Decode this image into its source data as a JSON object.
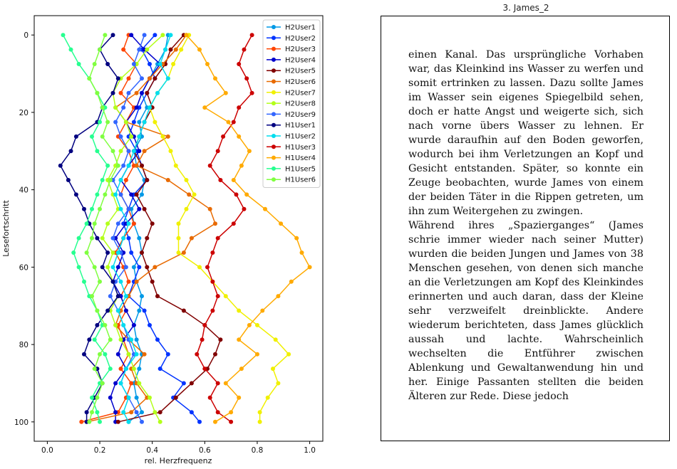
{
  "chart_data": {
    "type": "line",
    "xlabel": "rel. Herzfrequenz",
    "ylabel": "Lesefortschritt",
    "xlim": [
      -0.05,
      1.05
    ],
    "ylim": [
      105,
      -5
    ],
    "xticks": [
      "0.0",
      "0.2",
      "0.4",
      "0.6",
      "0.8",
      "1.0"
    ],
    "yticks": [
      "0",
      "20",
      "40",
      "60",
      "80",
      "100"
    ],
    "xtick_values": [
      0,
      0.2,
      0.4,
      0.6,
      0.8,
      1.0
    ],
    "ytick_values": [
      0,
      20,
      40,
      60,
      80,
      100
    ],
    "grid": false,
    "legend_position": "top-right",
    "y_steps": [
      0,
      3.75,
      7.5,
      11.25,
      15,
      18.75,
      22.5,
      26.25,
      30,
      33.75,
      37.5,
      41.25,
      45,
      48.75,
      52.5,
      56.25,
      60,
      63.75,
      67.5,
      71.25,
      75,
      78.75,
      82.5,
      86.25,
      90,
      93.75,
      97.5,
      100
    ],
    "series": [
      {
        "name": "H2User1",
        "color": "#0099e6",
        "x": [
          0.46,
          0.45,
          0.42,
          0.39,
          0.36,
          0.38,
          0.35,
          0.36,
          0.33,
          0.34,
          0.37,
          0.36,
          0.32,
          0.33,
          0.35,
          0.36,
          0.33,
          0.34,
          0.36,
          0.35,
          0.33,
          0.34,
          0.36,
          0.35,
          0.33,
          0.34,
          0.36,
          0.31
        ]
      },
      {
        "name": "H2User2",
        "color": "#0033ff",
        "x": [
          0.41,
          0.36,
          0.39,
          0.41,
          0.38,
          0.35,
          0.33,
          0.31,
          0.34,
          0.36,
          0.38,
          0.33,
          0.31,
          0.29,
          0.31,
          0.32,
          0.35,
          0.33,
          0.31,
          0.37,
          0.39,
          0.42,
          0.46,
          0.43,
          0.52,
          0.48,
          0.55,
          0.58
        ]
      },
      {
        "name": "H2User3",
        "color": "#ff4400",
        "x": [
          0.31,
          0.29,
          0.34,
          0.31,
          0.28,
          0.33,
          0.3,
          0.27,
          0.31,
          0.33,
          0.3,
          0.28,
          0.31,
          0.33,
          0.29,
          0.26,
          0.29,
          0.31,
          0.28,
          0.3,
          0.27,
          0.29,
          0.31,
          0.28,
          0.32,
          0.3,
          0.27,
          0.13
        ]
      },
      {
        "name": "H2User4",
        "color": "#0000cc",
        "x": [
          0.32,
          0.37,
          0.43,
          0.39,
          0.36,
          0.34,
          0.3,
          0.33,
          0.35,
          0.31,
          0.28,
          0.32,
          0.35,
          0.3,
          0.26,
          0.29,
          0.27,
          0.25,
          0.28,
          0.3,
          0.33,
          0.29,
          0.27,
          0.3,
          0.26,
          0.24,
          0.26,
          0.26
        ]
      },
      {
        "name": "H2User5",
        "color": "#800000",
        "x": [
          0.52,
          0.47,
          0.45,
          0.41,
          0.38,
          0.4,
          0.37,
          0.35,
          0.33,
          0.36,
          0.38,
          0.34,
          0.37,
          0.4,
          0.38,
          0.36,
          0.38,
          0.4,
          0.42,
          0.52,
          0.6,
          0.66,
          0.64,
          0.61,
          0.55,
          0.49,
          0.43,
          0.27
        ]
      },
      {
        "name": "H2User6",
        "color": "#e86a00",
        "x": [
          0.53,
          0.49,
          0.44,
          0.39,
          0.34,
          0.26,
          0.3,
          0.46,
          0.37,
          0.34,
          0.46,
          0.54,
          0.62,
          0.64,
          0.55,
          0.52,
          0.41,
          0.34,
          0.31,
          0.28,
          0.26,
          0.31,
          0.37,
          0.32,
          0.34,
          0.38,
          0.32,
          0.15
        ]
      },
      {
        "name": "H2User7",
        "color": "#f0f000",
        "x": [
          0.54,
          0.51,
          0.48,
          0.46,
          0.42,
          0.39,
          0.41,
          0.44,
          0.47,
          0.49,
          0.53,
          0.56,
          0.53,
          0.5,
          0.5,
          0.5,
          0.58,
          0.63,
          0.68,
          0.73,
          0.8,
          0.87,
          0.92,
          0.86,
          0.88,
          0.84,
          0.81,
          0.81
        ]
      },
      {
        "name": "H2User8",
        "color": "#b3ff1a",
        "x": [
          0.44,
          0.38,
          0.34,
          0.28,
          0.25,
          0.26,
          0.3,
          0.32,
          0.28,
          0.26,
          0.23,
          0.25,
          0.27,
          0.23,
          0.21,
          0.25,
          0.23,
          0.25,
          0.27,
          0.24,
          0.26,
          0.28,
          0.31,
          0.33,
          0.35,
          0.39,
          0.41,
          0.43
        ]
      },
      {
        "name": "H2User9",
        "color": "#3366ff",
        "x": [
          0.37,
          0.35,
          0.33,
          0.36,
          0.31,
          0.29,
          0.26,
          0.28,
          0.31,
          0.29,
          0.25,
          0.28,
          0.31,
          0.27,
          0.25,
          0.28,
          0.3,
          0.26,
          0.24,
          0.27,
          0.29,
          0.31,
          0.33,
          0.3,
          0.28,
          0.31,
          0.34,
          0.36
        ]
      },
      {
        "name": "H1User1",
        "color": "#000080",
        "x": [
          0.25,
          0.2,
          0.23,
          0.27,
          0.25,
          0.21,
          0.19,
          0.11,
          0.09,
          0.05,
          0.08,
          0.11,
          0.14,
          0.16,
          0.19,
          0.23,
          0.21,
          0.25,
          0.27,
          0.23,
          0.19,
          0.16,
          0.14,
          0.19,
          0.21,
          0.18,
          0.15,
          0.15
        ]
      },
      {
        "name": "H1User2",
        "color": "#00ddee",
        "x": [
          0.47,
          0.45,
          0.43,
          0.46,
          0.42,
          0.39,
          0.37,
          0.35,
          0.33,
          0.31,
          0.28,
          0.26,
          0.28,
          0.31,
          0.29,
          0.27,
          0.25,
          0.28,
          0.3,
          0.27,
          0.29,
          0.32,
          0.34,
          0.3,
          0.28,
          0.31,
          0.29,
          0.31
        ]
      },
      {
        "name": "H1User3",
        "color": "#cc0000",
        "x": [
          0.78,
          0.75,
          0.73,
          0.76,
          0.78,
          0.73,
          0.71,
          0.67,
          0.65,
          0.62,
          0.66,
          0.72,
          0.75,
          0.71,
          0.65,
          0.63,
          0.61,
          0.63,
          0.65,
          0.63,
          0.6,
          0.59,
          0.57,
          0.6,
          0.65,
          0.62,
          0.65,
          0.7
        ]
      },
      {
        "name": "H1User4",
        "color": "#ffaa00",
        "x": [
          0.53,
          0.58,
          0.61,
          0.64,
          0.68,
          0.6,
          0.69,
          0.73,
          0.77,
          0.74,
          0.71,
          0.76,
          0.83,
          0.89,
          0.95,
          0.97,
          1.0,
          0.93,
          0.88,
          0.82,
          0.77,
          0.73,
          0.8,
          0.74,
          0.68,
          0.73,
          0.7,
          0.64
        ]
      },
      {
        "name": "H1User5",
        "color": "#26ff90",
        "x": [
          0.06,
          0.09,
          0.12,
          0.16,
          0.19,
          0.22,
          0.2,
          0.17,
          0.19,
          0.23,
          0.21,
          0.19,
          0.17,
          0.15,
          0.12,
          0.1,
          0.12,
          0.14,
          0.16,
          0.19,
          0.21,
          0.18,
          0.22,
          0.24,
          0.2,
          0.17,
          0.19,
          0.2
        ]
      },
      {
        "name": "H1User6",
        "color": "#80ff40",
        "x": [
          0.22,
          0.2,
          0.18,
          0.16,
          0.19,
          0.21,
          0.23,
          0.21,
          0.25,
          0.27,
          0.24,
          0.22,
          0.2,
          0.18,
          0.17,
          0.15,
          0.18,
          0.2,
          0.17,
          0.19,
          0.22,
          0.24,
          0.2,
          0.18,
          0.21,
          0.19,
          0.17,
          0.16
        ]
      }
    ]
  },
  "document": {
    "title": "3. James_2",
    "text": "  einen Kanal. Das ursprüngliche Vorhaben war, das Kleinkind ins Wasser zu werfen und somit ertrinken zu lassen. Dazu sollte James im Wasser sein eigenes Spiegelbild sehen, doch er hatte Angst und weigerte sich, sich nach vorne übers Wasser zu lehnen. Er wurde daraufhin auf den Boden geworfen, wodurch bei ihm Verletzungen an Kopf und Gesicht entstanden. Später, so konnte ein Zeuge beobachten, wurde James von einem der beiden Täter in die Rippen getreten, um ihn zum Weitergehen zu zwingen.\nWährend ihres „Spazierganges“ (James schrie immer wieder nach seiner Mutter) wurden die beiden Jungen und James von 38 Menschen gesehen, von denen sich manche an die Verletzungen am Kopf des Kleinkindes erinnerten und auch daran, dass der Kleine sehr verzweifelt dreinblickte. Andere wiederum berichteten, dass James glücklich aussah und lachte. Wahrscheinlich wechselten die Entführer zwischen Ablenkung und Gewaltanwendung hin und her. Einige Passanten stellten die beiden Älteren zur Rede. Diese jedoch"
  }
}
